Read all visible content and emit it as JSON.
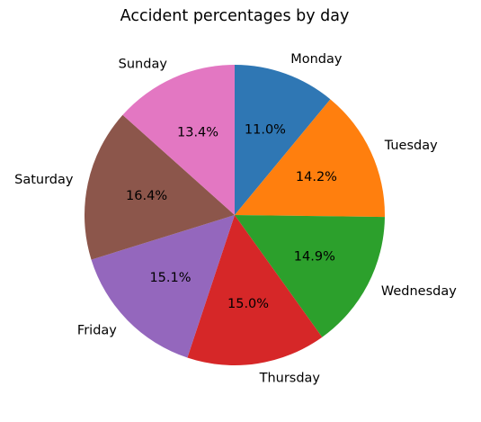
{
  "chart_data": {
    "type": "pie",
    "title": "Accident percentages by day",
    "categories": [
      "Monday",
      "Tuesday",
      "Wednesday",
      "Thursday",
      "Friday",
      "Saturday",
      "Sunday"
    ],
    "values": [
      11.0,
      14.2,
      14.9,
      15.0,
      15.1,
      16.4,
      13.4
    ],
    "value_labels": [
      "11.0%",
      "14.2%",
      "14.9%",
      "15.0%",
      "15.1%",
      "16.4%",
      "13.4%"
    ],
    "colors": [
      "#2f77b4",
      "#ff7f0e",
      "#2ca02c",
      "#d62728",
      "#9467bd",
      "#8c564b",
      "#e377c2"
    ],
    "start_angle_deg": 90,
    "direction": "clockwise",
    "legend": "none"
  }
}
